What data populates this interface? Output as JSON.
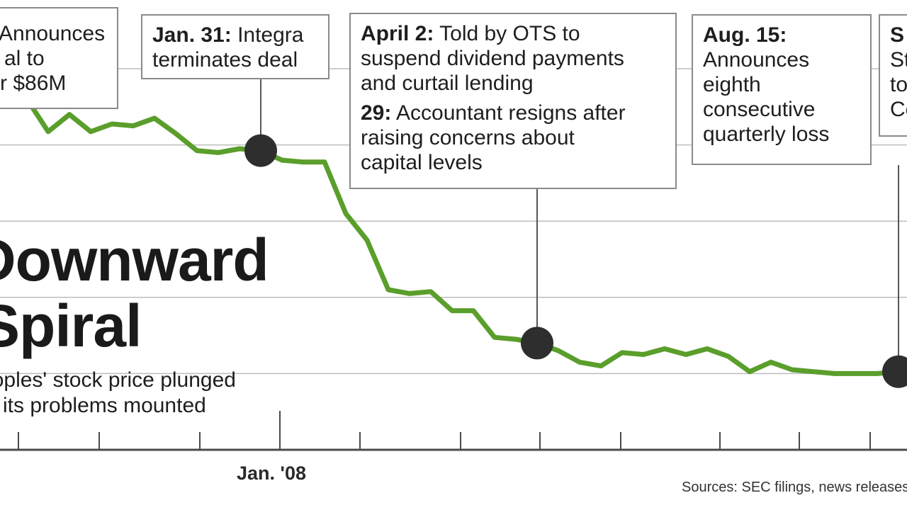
{
  "chart_data": {
    "type": "line",
    "title": "Downward Spiral",
    "title_lines": [
      "Downward",
      "Spiral"
    ],
    "subtitle": "Peoples' stock price plunged as its problems mounted",
    "subtitle_lines": [
      "Peoples' stock price plunged",
      "as its problems mounted"
    ],
    "x_tick_labels": [
      "Jan. '08"
    ],
    "source": "Sources: SEC filings, news releases",
    "grid": "horizontal",
    "series": [
      {
        "color": "#5a9e2b",
        "values": [
          88.5,
          94.5,
          92,
          83.5,
          88,
          83.5,
          85.5,
          85,
          87,
          83,
          78.5,
          78,
          79,
          78.5,
          76,
          75.5,
          75.5,
          62,
          55,
          42,
          41,
          41.5,
          36.5,
          36.5,
          29.5,
          29,
          28,
          26,
          23,
          22,
          25.5,
          25,
          26.5,
          25,
          26.5,
          24.5,
          20.5,
          23,
          21,
          20.5,
          20,
          20,
          20,
          20.5,
          20
        ]
      }
    ],
    "events": [
      {
        "label": "Jan. 31:",
        "text_lines": [
          "Integra",
          "terminates deal"
        ],
        "point_index": 13
      },
      {
        "label": "April 2:",
        "text_lines": [
          "Told by OTS to",
          "suspend dividend payments",
          "and curtail lending"
        ],
        "label2": "29:",
        "text2_lines": [
          "Accountant resigns after",
          "raising concerns about",
          "capital levels"
        ],
        "point_index": 26
      },
      {
        "label": "Aug. 15:",
        "text_lines": [
          "Announces",
          "eighth",
          "consecutive",
          "quarterly loss"
        ],
        "point_index": 43
      }
    ],
    "partial_callouts": [
      {
        "text_lines": [
          "Announces",
          "al to",
          "r $86M"
        ]
      },
      {
        "text_lines": [
          "S",
          "St",
          "to",
          "Ce"
        ]
      }
    ]
  }
}
